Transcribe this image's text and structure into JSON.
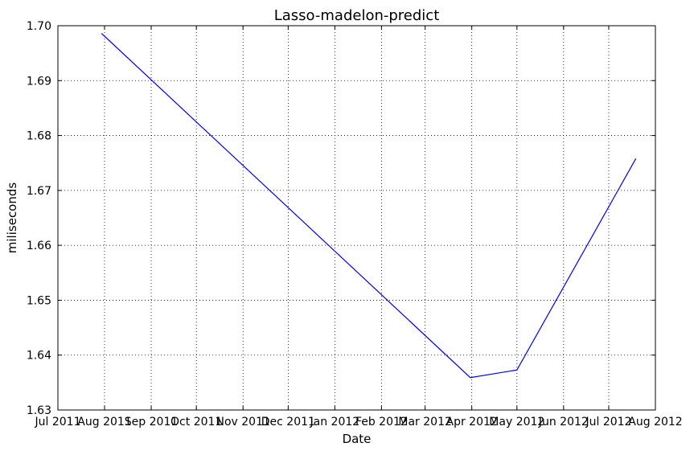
{
  "chart_data": {
    "type": "line",
    "title": "Lasso-madelon-predict",
    "xlabel": "Date",
    "ylabel": "miliseconds",
    "x_type": "date",
    "xlim": [
      "2011-07-01",
      "2012-08-01"
    ],
    "ylim": [
      1.63,
      1.7
    ],
    "grid": true,
    "x_ticks": [
      {
        "date": "2011-07-01",
        "label": "Jul 2011"
      },
      {
        "date": "2011-08-01",
        "label": "Aug 2011"
      },
      {
        "date": "2011-09-01",
        "label": "Sep 2011"
      },
      {
        "date": "2011-10-01",
        "label": "Oct 2011"
      },
      {
        "date": "2011-11-01",
        "label": "Nov 2011"
      },
      {
        "date": "2011-12-01",
        "label": "Dec 2011"
      },
      {
        "date": "2012-01-01",
        "label": "Jan 2012"
      },
      {
        "date": "2012-02-01",
        "label": "Feb 2012"
      },
      {
        "date": "2012-03-01",
        "label": "Mar 2012"
      },
      {
        "date": "2012-04-01",
        "label": "Apr 2012"
      },
      {
        "date": "2012-05-01",
        "label": "May 2012"
      },
      {
        "date": "2012-06-01",
        "label": "Jun 2012"
      },
      {
        "date": "2012-07-01",
        "label": "Jul 2012"
      },
      {
        "date": "2012-08-01",
        "label": "Aug 2012"
      }
    ],
    "y_ticks": [
      {
        "value": 1.63,
        "label": "1.63"
      },
      {
        "value": 1.64,
        "label": "1.64"
      },
      {
        "value": 1.65,
        "label": "1.65"
      },
      {
        "value": 1.66,
        "label": "1.66"
      },
      {
        "value": 1.67,
        "label": "1.67"
      },
      {
        "value": 1.68,
        "label": "1.68"
      },
      {
        "value": 1.69,
        "label": "1.69"
      },
      {
        "value": 1.7,
        "label": "1.70"
      }
    ],
    "series": [
      {
        "color": "#0000ff",
        "points": [
          {
            "x": "2011-07-30",
            "y": 1.6986
          },
          {
            "x": "2012-03-31",
            "y": 1.6359
          },
          {
            "x": "2012-05-01",
            "y": 1.6373
          },
          {
            "x": "2012-07-19",
            "y": 1.6758
          }
        ]
      }
    ]
  }
}
